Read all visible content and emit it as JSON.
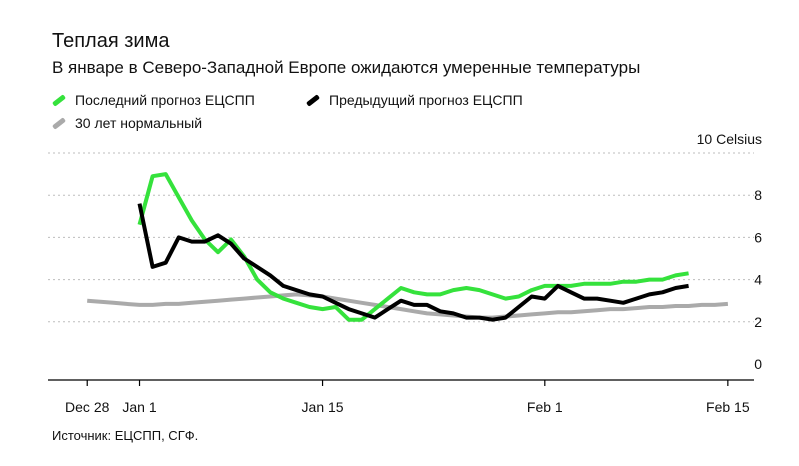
{
  "title": "Теплая зима",
  "subtitle": "В январе в Северо-Западной Европе ожидаются умеренные температуры",
  "source": "Источник: ЕЦСПП, СГФ.",
  "legend": [
    {
      "label": "Последний прогноз ЕЦСПП",
      "color": "#35e23c"
    },
    {
      "label": "Предыдущий прогноз ЕЦСПП",
      "color": "#000000"
    },
    {
      "label": "30 лет нормальный",
      "color": "#aaaaaa"
    }
  ],
  "chart_data": {
    "type": "line",
    "title": "Теплая зима",
    "subtitle": "В январе в Северо-Западной Европе ожидаются умеренные температуры",
    "ylabel": "10 Celsius",
    "ylim": [
      0,
      10
    ],
    "yticks": [
      0,
      2,
      4,
      6,
      8
    ],
    "y_top_label": "10 Celsius",
    "xlim": [
      "2021-12-25",
      "2022-02-17"
    ],
    "xticks": [
      {
        "date": "2021-12-28",
        "label": "Dec 28"
      },
      {
        "date": "2022-01-01",
        "label": "Jan 1"
      },
      {
        "date": "2022-01-15",
        "label": "Jan 15"
      },
      {
        "date": "2022-02-01",
        "label": "Feb 1"
      },
      {
        "date": "2022-02-15",
        "label": "Feb 15"
      }
    ],
    "grid": true,
    "legend_position": "top-left",
    "series": [
      {
        "name": "30 лет нормальный",
        "color": "#aaaaaa",
        "x": [
          "2021-12-28",
          "2021-12-29",
          "2021-12-30",
          "2021-12-31",
          "2022-01-01",
          "2022-01-02",
          "2022-01-03",
          "2022-01-04",
          "2022-01-05",
          "2022-01-06",
          "2022-01-07",
          "2022-01-08",
          "2022-01-09",
          "2022-01-10",
          "2022-01-11",
          "2022-01-12",
          "2022-01-13",
          "2022-01-14",
          "2022-01-15",
          "2022-01-16",
          "2022-01-17",
          "2022-01-18",
          "2022-01-19",
          "2022-01-20",
          "2022-01-21",
          "2022-01-22",
          "2022-01-23",
          "2022-01-24",
          "2022-01-25",
          "2022-01-26",
          "2022-01-27",
          "2022-01-28",
          "2022-01-29",
          "2022-01-30",
          "2022-01-31",
          "2022-02-01",
          "2022-02-02",
          "2022-02-03",
          "2022-02-04",
          "2022-02-05",
          "2022-02-06",
          "2022-02-07",
          "2022-02-08",
          "2022-02-09",
          "2022-02-10",
          "2022-02-11",
          "2022-02-12",
          "2022-02-13",
          "2022-02-14",
          "2022-02-15"
        ],
        "values": [
          3.0,
          2.95,
          2.9,
          2.85,
          2.8,
          2.8,
          2.85,
          2.85,
          2.9,
          2.95,
          3.0,
          3.05,
          3.1,
          3.15,
          3.2,
          3.25,
          3.3,
          3.25,
          3.2,
          3.1,
          3.0,
          2.9,
          2.8,
          2.7,
          2.6,
          2.5,
          2.4,
          2.35,
          2.3,
          2.25,
          2.2,
          2.2,
          2.25,
          2.3,
          2.35,
          2.4,
          2.45,
          2.45,
          2.5,
          2.55,
          2.6,
          2.6,
          2.65,
          2.7,
          2.7,
          2.75,
          2.75,
          2.8,
          2.8,
          2.85
        ]
      },
      {
        "name": "Последний прогноз ЕЦСПП",
        "color": "#35e23c",
        "x": [
          "2022-01-01",
          "2022-01-02",
          "2022-01-03",
          "2022-01-04",
          "2022-01-05",
          "2022-01-06",
          "2022-01-07",
          "2022-01-08",
          "2022-01-09",
          "2022-01-10",
          "2022-01-11",
          "2022-01-12",
          "2022-01-13",
          "2022-01-14",
          "2022-01-15",
          "2022-01-16",
          "2022-01-17",
          "2022-01-18",
          "2022-01-19",
          "2022-01-20",
          "2022-01-21",
          "2022-01-22",
          "2022-01-23",
          "2022-01-24",
          "2022-01-25",
          "2022-01-26",
          "2022-01-27",
          "2022-01-28",
          "2022-01-29",
          "2022-01-30",
          "2022-01-31",
          "2022-02-01",
          "2022-02-02",
          "2022-02-03",
          "2022-02-04",
          "2022-02-05",
          "2022-02-06",
          "2022-02-07",
          "2022-02-08",
          "2022-02-09",
          "2022-02-10",
          "2022-02-11",
          "2022-02-12"
        ],
        "values": [
          6.6,
          8.9,
          9.0,
          7.9,
          6.8,
          5.9,
          5.3,
          5.9,
          5.1,
          4.0,
          3.4,
          3.1,
          2.9,
          2.7,
          2.6,
          2.7,
          2.1,
          2.1,
          2.6,
          3.1,
          3.6,
          3.4,
          3.3,
          3.3,
          3.5,
          3.6,
          3.5,
          3.3,
          3.1,
          3.2,
          3.5,
          3.7,
          3.7,
          3.7,
          3.8,
          3.8,
          3.8,
          3.9,
          3.9,
          4.0,
          4.0,
          4.2,
          4.3
        ]
      },
      {
        "name": "Предыдущий прогноз ЕЦСПП",
        "color": "#000000",
        "x": [
          "2022-01-01",
          "2022-01-02",
          "2022-01-03",
          "2022-01-04",
          "2022-01-05",
          "2022-01-06",
          "2022-01-07",
          "2022-01-08",
          "2022-01-09",
          "2022-01-10",
          "2022-01-11",
          "2022-01-12",
          "2022-01-13",
          "2022-01-14",
          "2022-01-15",
          "2022-01-16",
          "2022-01-17",
          "2022-01-18",
          "2022-01-19",
          "2022-01-20",
          "2022-01-21",
          "2022-01-22",
          "2022-01-23",
          "2022-01-24",
          "2022-01-25",
          "2022-01-26",
          "2022-01-27",
          "2022-01-28",
          "2022-01-29",
          "2022-01-30",
          "2022-01-31",
          "2022-02-01",
          "2022-02-02",
          "2022-02-03",
          "2022-02-04",
          "2022-02-05",
          "2022-02-06",
          "2022-02-07",
          "2022-02-08",
          "2022-02-09",
          "2022-02-10",
          "2022-02-11",
          "2022-02-12"
        ],
        "values": [
          7.6,
          4.6,
          4.8,
          6.0,
          5.8,
          5.8,
          6.1,
          5.7,
          5.0,
          4.6,
          4.2,
          3.7,
          3.5,
          3.3,
          3.2,
          2.9,
          2.6,
          2.4,
          2.2,
          2.6,
          3.0,
          2.8,
          2.8,
          2.5,
          2.4,
          2.2,
          2.2,
          2.1,
          2.2,
          2.7,
          3.2,
          3.1,
          3.7,
          3.4,
          3.1,
          3.1,
          3.0,
          2.9,
          3.1,
          3.3,
          3.4,
          3.6,
          3.7
        ]
      }
    ]
  }
}
